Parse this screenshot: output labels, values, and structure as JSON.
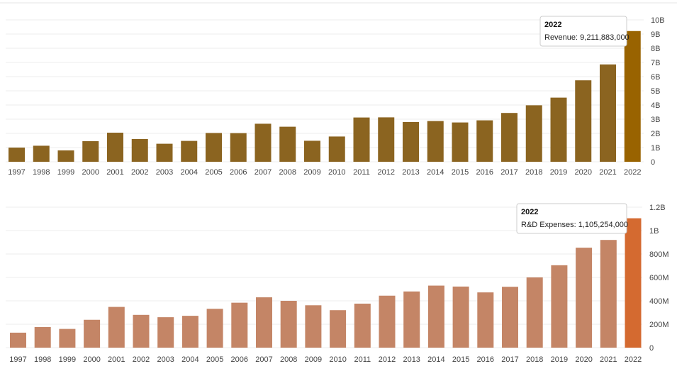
{
  "chart_data": [
    {
      "type": "bar",
      "title": "",
      "xlabel": "",
      "ylabel": "",
      "categories": [
        "1997",
        "1998",
        "1999",
        "2000",
        "2001",
        "2002",
        "2003",
        "2004",
        "2005",
        "2006",
        "2007",
        "2008",
        "2009",
        "2010",
        "2011",
        "2012",
        "2013",
        "2014",
        "2015",
        "2016",
        "2017",
        "2018",
        "2019",
        "2020",
        "2021",
        "2022"
      ],
      "series": [
        {
          "values": [
            1.0,
            1.13,
            0.8,
            1.45,
            2.05,
            1.6,
            1.27,
            1.47,
            2.03,
            2.02,
            2.68,
            2.47,
            1.48,
            1.78,
            3.12,
            3.13,
            2.8,
            2.87,
            2.77,
            2.92,
            3.44,
            3.98,
            4.52,
            5.74,
            6.86,
            9.211883
          ]
        }
      ],
      "value_unit": "B",
      "ylim": [
        0,
        10
      ],
      "yticks": [
        "0",
        "1B",
        "2B",
        "3B",
        "4B",
        "5B",
        "6B",
        "7B",
        "8B",
        "9B",
        "10B"
      ],
      "y_axis_position": "right",
      "grid": true,
      "bar_color": "#8b6420",
      "highlight_color": "#996300",
      "highlight_index": 25,
      "tooltip": {
        "title": "2022",
        "text": "Revenue: 9,211,883,000"
      }
    },
    {
      "type": "bar",
      "title": "",
      "xlabel": "",
      "ylabel": "",
      "categories": [
        "1997",
        "1998",
        "1999",
        "2000",
        "2001",
        "2002",
        "2003",
        "2004",
        "2005",
        "2006",
        "2007",
        "2008",
        "2009",
        "2010",
        "2011",
        "2012",
        "2013",
        "2014",
        "2015",
        "2016",
        "2017",
        "2018",
        "2019",
        "2020",
        "2021",
        "2022"
      ],
      "series": [
        {
          "values": [
            128,
            176,
            160,
            238,
            348,
            280,
            260,
            272,
            332,
            384,
            430,
            400,
            362,
            320,
            376,
            444,
            480,
            530,
            522,
            472,
            520,
            600,
            704,
            854,
            920,
            1105.254
          ]
        }
      ],
      "value_unit": "M",
      "ylim": [
        0,
        1200
      ],
      "yticks": [
        "0",
        "200M",
        "400M",
        "600M",
        "800M",
        "1B",
        "1.2B"
      ],
      "y_axis_position": "right",
      "grid": true,
      "bar_color": "#c48566",
      "highlight_color": "#d46a30",
      "highlight_index": 25,
      "tooltip": {
        "title": "2022",
        "text": "R&D Expenses: 1,105,254,000"
      }
    }
  ]
}
